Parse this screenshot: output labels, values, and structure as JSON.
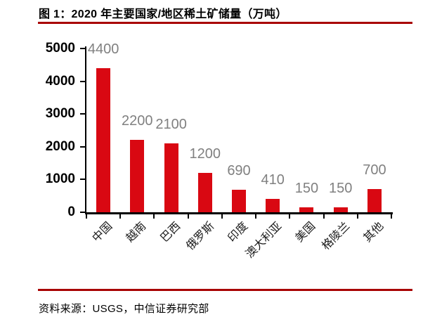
{
  "title": {
    "text": "图 1：2020 年主要国家/地区稀土矿储量（万吨）"
  },
  "footer": {
    "source_text": "资料来源：USGS，中信证券研究部"
  },
  "colors": {
    "bar": "#d90812",
    "rule": "#a80000",
    "value_label": "#808080",
    "axis": "#000000",
    "y_tick_label": "#000000",
    "x_tick_label": "#1a1a1a",
    "background": "#ffffff"
  },
  "chart_data": {
    "type": "bar",
    "title": "图 1：2020 年主要国家/地区稀土矿储量（万吨）",
    "categories": [
      "中国",
      "越南",
      "巴西",
      "俄罗斯",
      "印度",
      "澳大利亚",
      "美国",
      "格陵兰",
      "其他"
    ],
    "values": [
      4400,
      2200,
      2100,
      1200,
      690,
      410,
      150,
      150,
      700
    ],
    "xlabel": "",
    "ylabel": "",
    "ylim": [
      0,
      5000
    ],
    "yticks": [
      0,
      1000,
      2000,
      3000,
      4000,
      5000
    ],
    "grid": false,
    "legend": "none",
    "data_labels": "outside-end",
    "x_label_rotation_deg": 45
  }
}
